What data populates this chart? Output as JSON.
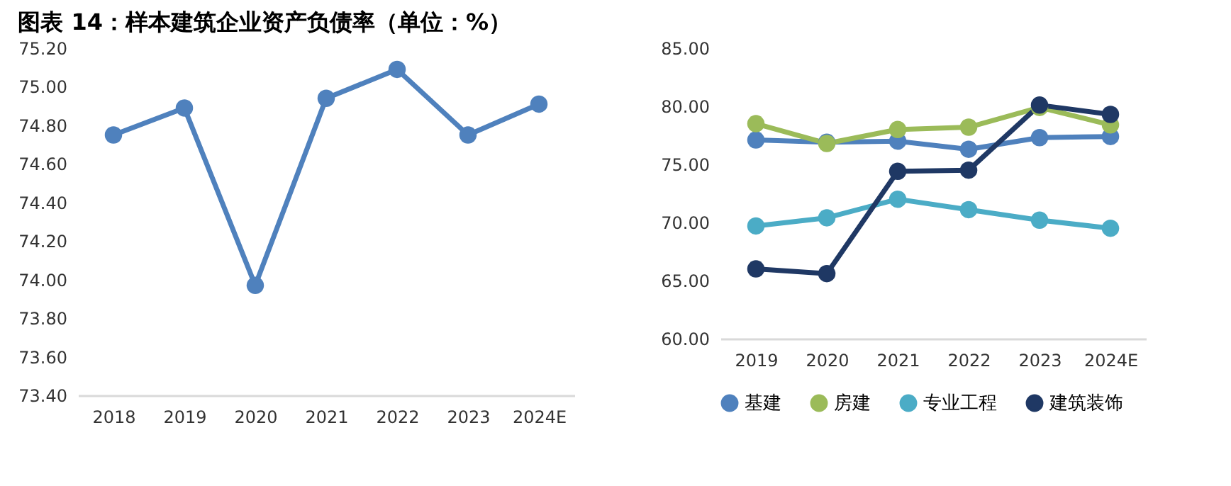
{
  "chart_data": [
    {
      "type": "line",
      "title": "图表 14：样本建筑企业资产负债率（单位：%）",
      "categories": [
        "2018",
        "2019",
        "2020",
        "2021",
        "2022",
        "2023",
        "2024E"
      ],
      "series": [
        {
          "color": "#4f81bd",
          "values": [
            74.75,
            74.89,
            73.97,
            74.94,
            75.09,
            74.75,
            74.91
          ]
        }
      ],
      "ylim": [
        73.4,
        75.2
      ],
      "yticks": [
        {
          "value": 73.4,
          "label": "73.40"
        },
        {
          "value": 73.6,
          "label": "73.60"
        },
        {
          "value": 73.8,
          "label": "73.80"
        },
        {
          "value": 74.0,
          "label": "74.00"
        },
        {
          "value": 74.2,
          "label": "74.20"
        },
        {
          "value": 74.4,
          "label": "74.40"
        },
        {
          "value": 74.6,
          "label": "74.60"
        },
        {
          "value": 74.8,
          "label": "74.80"
        },
        {
          "value": 75.0,
          "label": "75.00"
        },
        {
          "value": 75.2,
          "label": "75.20"
        }
      ],
      "marker": "circle",
      "grid": false,
      "legend": false
    },
    {
      "type": "line",
      "categories": [
        "2019",
        "2020",
        "2021",
        "2022",
        "2023",
        "2024E"
      ],
      "series": [
        {
          "name": "基建",
          "color": "#4f81bd",
          "values": [
            77.1,
            76.9,
            77.0,
            76.3,
            77.3,
            77.4
          ]
        },
        {
          "name": "房建",
          "color": "#9bbb59",
          "values": [
            78.5,
            76.8,
            78.0,
            78.2,
            79.9,
            78.4
          ]
        },
        {
          "name": "专业工程",
          "color": "#4bacc6",
          "values": [
            69.7,
            70.4,
            72.0,
            71.1,
            70.2,
            69.5
          ]
        },
        {
          "name": "建筑装饰",
          "color": "#1f3864",
          "values": [
            66.0,
            65.6,
            74.4,
            74.5,
            80.1,
            79.3
          ]
        }
      ],
      "ylim": [
        60,
        85
      ],
      "yticks": [
        {
          "value": 60,
          "label": "60.00"
        },
        {
          "value": 65,
          "label": "65.00"
        },
        {
          "value": 70,
          "label": "70.00"
        },
        {
          "value": 75,
          "label": "75.00"
        },
        {
          "value": 80,
          "label": "80.00"
        },
        {
          "value": 85,
          "label": "85.00"
        }
      ],
      "marker": "circle",
      "grid": false,
      "legend": "bottom"
    }
  ]
}
